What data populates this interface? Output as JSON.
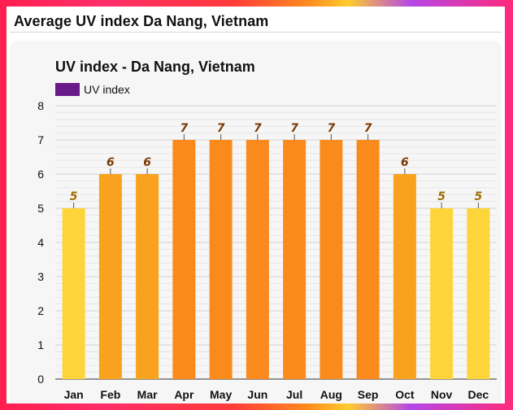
{
  "page": {
    "title": "Average UV index Da Nang, Vietnam"
  },
  "colors": {
    "legend": "#6a1b8a",
    "low": "#fdd43a",
    "moderate": "#f9a21e",
    "high": "#fb8a1c",
    "label_low": "#a06c00",
    "label_high": "#7a3800",
    "grid": "#dcdcdc",
    "background": "#f6f6f6"
  },
  "chart_data": {
    "type": "bar",
    "title": "UV index - Da Nang, Vietnam",
    "xlabel": "",
    "ylabel": "",
    "legend": {
      "label": "UV index",
      "position": "top-left"
    },
    "categories": [
      "Jan",
      "Feb",
      "Mar",
      "Apr",
      "May",
      "Jun",
      "Jul",
      "Aug",
      "Sep",
      "Oct",
      "Nov",
      "Dec"
    ],
    "series": [
      {
        "name": "UV index",
        "values": [
          5,
          6,
          6,
          7,
          7,
          7,
          7,
          7,
          7,
          6,
          5,
          5
        ]
      }
    ],
    "data_labels": [
      "5",
      "6",
      "6",
      "7",
      "7",
      "7",
      "7",
      "7",
      "7",
      "6",
      "5",
      "5"
    ],
    "ylim": [
      0,
      8
    ],
    "y_ticks": [
      "0",
      "1",
      "2",
      "3",
      "4",
      "5",
      "6",
      "7",
      "8"
    ],
    "grid": true
  }
}
